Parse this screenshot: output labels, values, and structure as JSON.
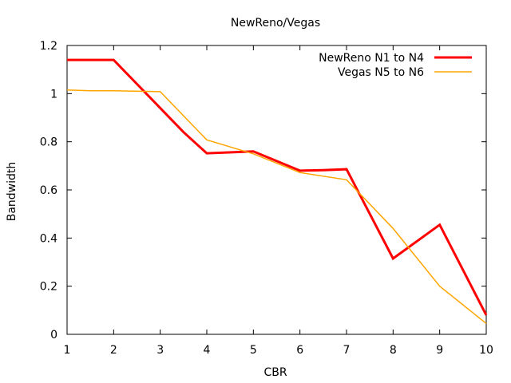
{
  "chart_data": {
    "type": "line",
    "title": "NewReno/Vegas",
    "xlabel": "CBR",
    "ylabel": "Bandwidth",
    "xlim": [
      1,
      10
    ],
    "ylim": [
      0,
      1.2
    ],
    "xticks": [
      1,
      2,
      3,
      4,
      5,
      6,
      7,
      8,
      9,
      10
    ],
    "yticks": [
      0,
      0.2,
      0.4,
      0.6,
      0.8,
      1,
      1.2
    ],
    "grid": false,
    "legend_position": "top-right",
    "series": [
      {
        "name": "NewReno N1 to N4",
        "color": "#ff0000",
        "x": [
          1,
          2,
          3,
          3.5,
          4,
          5,
          6,
          6.5,
          7,
          8,
          9,
          10
        ],
        "y": [
          1.14,
          1.14,
          0.94,
          0.84,
          0.752,
          0.76,
          0.68,
          0.682,
          0.686,
          0.315,
          0.455,
          0.08
        ]
      },
      {
        "name": "Vegas N5 to N6",
        "color": "#ffa500",
        "x": [
          1,
          1.5,
          2,
          3,
          4,
          5,
          6,
          7,
          8,
          9,
          10
        ],
        "y": [
          1.015,
          1.012,
          1.012,
          1.008,
          0.808,
          0.75,
          0.672,
          0.642,
          0.44,
          0.2,
          0.045
        ]
      }
    ]
  }
}
